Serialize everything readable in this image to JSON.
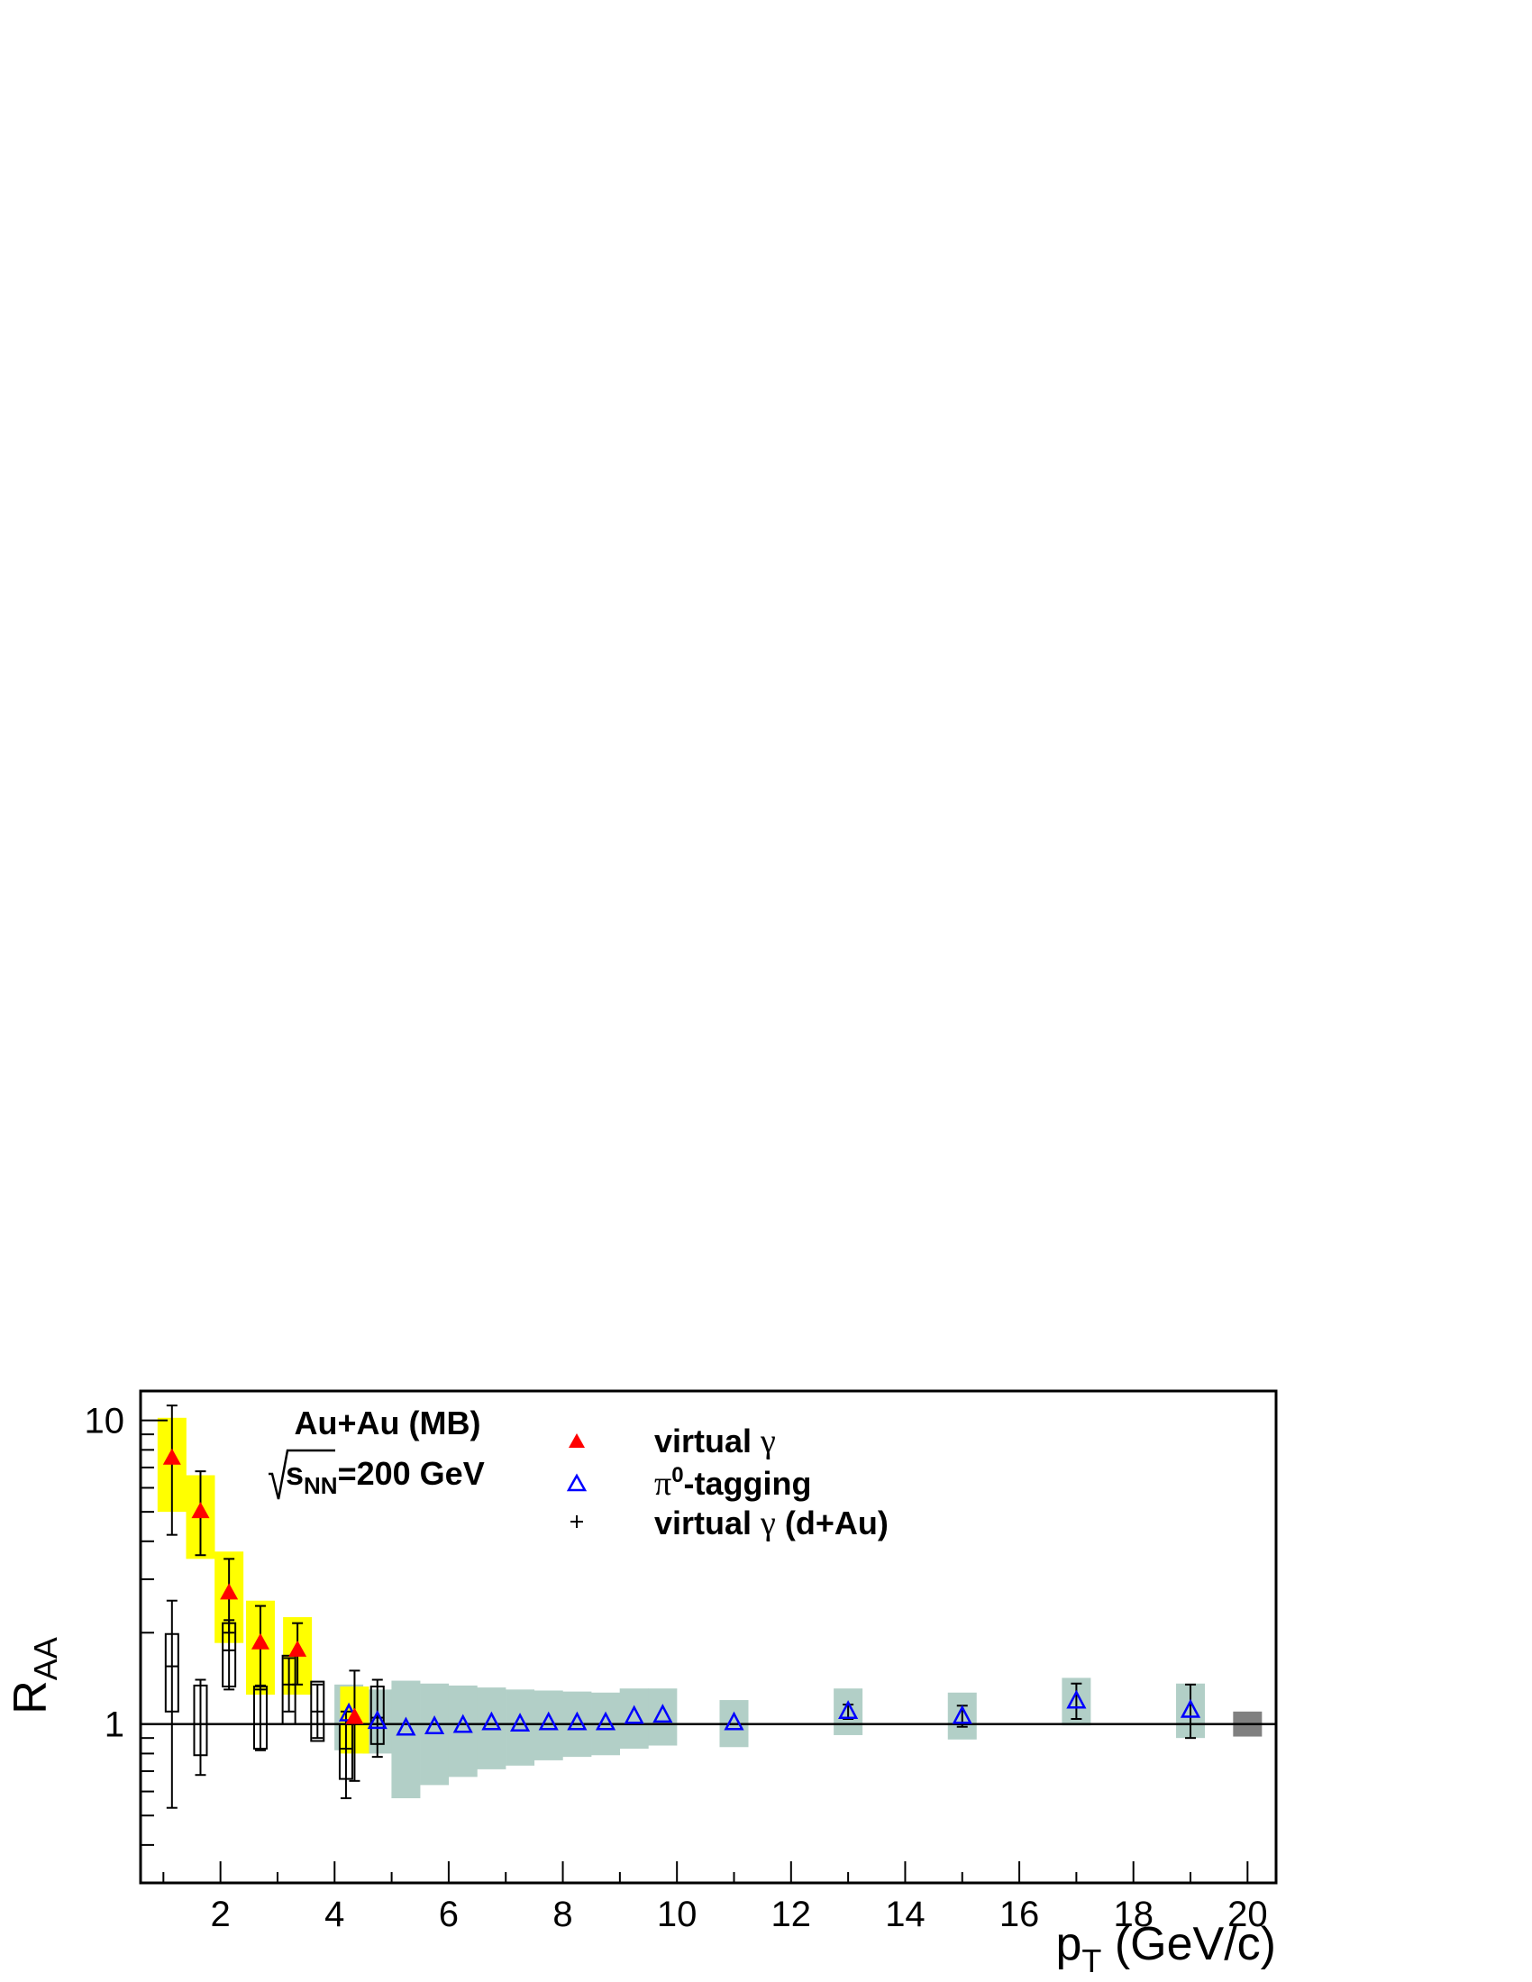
{
  "chart_data": {
    "type": "scatter",
    "title": "",
    "xlabel": "p_T (GeV/c)",
    "ylabel": "R_AA",
    "xlim": [
      0.6,
      20.5
    ],
    "ylim": [
      0.3,
      12.5
    ],
    "y_scale": "log",
    "x_ticks": [
      "2",
      "4",
      "6",
      "8",
      "10",
      "12",
      "14",
      "16",
      "18",
      "20"
    ],
    "y_ticks": [
      "1",
      "10"
    ],
    "grid": false,
    "legend_position": "top-center",
    "reference_line": 1,
    "annotations": {
      "system": "Au+Au (MB)",
      "energy_prefix": "s",
      "energy_sub": "NN",
      "energy_value": "=200 GeV"
    },
    "normalization_box": {
      "x": 20.0,
      "low": 0.91,
      "high": 1.1,
      "color": "#808080"
    },
    "legend": {
      "virtual": {
        "text": "virtual ",
        "greek": "γ"
      },
      "tagging": {
        "greek": "π",
        "sup": "0",
        "text": "-tagging"
      },
      "dau": {
        "text": "virtual ",
        "greek": "γ",
        "suffix": " (d+Au)"
      }
    },
    "series": [
      {
        "name": "virtual γ",
        "marker": "filled-triangle",
        "color": "#ff0000",
        "sys_color": "#ffff00",
        "points": [
          {
            "x": 1.15,
            "y": 7.5,
            "err_lo": 4.2,
            "err_hi": 11.2,
            "sys_lo": 5.0,
            "sys_hi": 10.2
          },
          {
            "x": 1.65,
            "y": 5.0,
            "err_lo": 3.6,
            "err_hi": 6.8,
            "sys_lo": 3.5,
            "sys_hi": 6.6
          },
          {
            "x": 2.15,
            "y": 2.7,
            "err_lo": 2.0,
            "err_hi": 3.5,
            "sys_lo": 1.85,
            "sys_hi": 3.7
          },
          {
            "x": 2.7,
            "y": 1.85,
            "err_lo": 1.3,
            "err_hi": 2.45,
            "sys_lo": 1.25,
            "sys_hi": 2.55
          },
          {
            "x": 3.35,
            "y": 1.75,
            "err_lo": 1.35,
            "err_hi": 2.15,
            "sys_lo": 1.25,
            "sys_hi": 2.25
          },
          {
            "x": 4.35,
            "y": 1.05,
            "err_lo": 0.65,
            "err_hi": 1.5,
            "sys_lo": 0.8,
            "sys_hi": 1.33
          }
        ]
      },
      {
        "name": "π0-tagging",
        "marker": "open-triangle",
        "color": "#0000ff",
        "sys_color": "#b2cfc7",
        "points": [
          {
            "x": 4.25,
            "y": 1.08,
            "sys_lo": 0.82,
            "sys_hi": 1.35
          },
          {
            "x": 4.75,
            "y": 1.02,
            "sys_lo": 0.8,
            "sys_hi": 1.3
          },
          {
            "x": 5.25,
            "y": 0.97,
            "sys_lo": 0.57,
            "sys_hi": 1.39
          },
          {
            "x": 5.75,
            "y": 0.98,
            "sys_lo": 0.63,
            "sys_hi": 1.36
          },
          {
            "x": 6.25,
            "y": 0.99,
            "sys_lo": 0.67,
            "sys_hi": 1.34
          },
          {
            "x": 6.75,
            "y": 1.01,
            "sys_lo": 0.71,
            "sys_hi": 1.32
          },
          {
            "x": 7.25,
            "y": 1.0,
            "sys_lo": 0.73,
            "sys_hi": 1.3
          },
          {
            "x": 7.75,
            "y": 1.01,
            "sys_lo": 0.76,
            "sys_hi": 1.29
          },
          {
            "x": 8.25,
            "y": 1.01,
            "sys_lo": 0.78,
            "sys_hi": 1.28
          },
          {
            "x": 8.75,
            "y": 1.01,
            "sys_lo": 0.79,
            "sys_hi": 1.27
          },
          {
            "x": 9.25,
            "y": 1.06,
            "sys_lo": 0.83,
            "sys_hi": 1.31
          },
          {
            "x": 9.75,
            "y": 1.07,
            "sys_lo": 0.85,
            "sys_hi": 1.31
          },
          {
            "x": 11.0,
            "y": 1.01,
            "sys_lo": 0.84,
            "sys_hi": 1.2
          },
          {
            "x": 13.0,
            "y": 1.1,
            "err_lo": 1.04,
            "err_hi": 1.16,
            "sys_lo": 0.92,
            "sys_hi": 1.31
          },
          {
            "x": 15.0,
            "y": 1.06,
            "err_lo": 0.98,
            "err_hi": 1.15,
            "sys_lo": 0.89,
            "sys_hi": 1.27
          },
          {
            "x": 17.0,
            "y": 1.19,
            "err_lo": 1.04,
            "err_hi": 1.36,
            "sys_lo": 0.99,
            "sys_hi": 1.42
          },
          {
            "x": 19.0,
            "y": 1.11,
            "err_lo": 0.9,
            "err_hi": 1.35,
            "sys_lo": 0.9,
            "sys_hi": 1.36
          }
        ]
      },
      {
        "name": "virtual γ (d+Au)",
        "marker": "cross",
        "color": "#000000",
        "sys_color": "#000000",
        "points": [
          {
            "x": 1.15,
            "y": 1.55,
            "err_lo": 0.53,
            "err_hi": 2.55,
            "sys_lo": 1.1,
            "sys_hi": 1.98
          },
          {
            "x": 1.65,
            "y": 1.0,
            "err_lo": 0.68,
            "err_hi": 1.4,
            "sys_lo": 0.79,
            "sys_hi": 1.34
          },
          {
            "x": 2.15,
            "y": 1.75,
            "err_lo": 1.3,
            "err_hi": 2.2,
            "sys_lo": 1.33,
            "sys_hi": 2.15
          },
          {
            "x": 2.7,
            "y": 1.0,
            "err_lo": 0.82,
            "err_hi": 1.34,
            "sys_lo": 0.83,
            "sys_hi": 1.33
          },
          {
            "x": 3.2,
            "y": 1.35,
            "err_lo": 1.1,
            "err_hi": 1.65,
            "sys_lo": 1.0,
            "sys_hi": 1.68
          },
          {
            "x": 3.7,
            "y": 1.1,
            "err_lo": 0.9,
            "err_hi": 1.35,
            "sys_lo": 0.88,
            "sys_hi": 1.38
          },
          {
            "x": 4.2,
            "y": 0.83,
            "err_lo": 0.57,
            "err_hi": 1.1,
            "sys_lo": 0.66,
            "sys_hi": 1.0
          },
          {
            "x": 4.75,
            "y": 1.05,
            "err_lo": 0.78,
            "err_hi": 1.4,
            "sys_lo": 0.86,
            "sys_hi": 1.33
          }
        ]
      }
    ]
  }
}
